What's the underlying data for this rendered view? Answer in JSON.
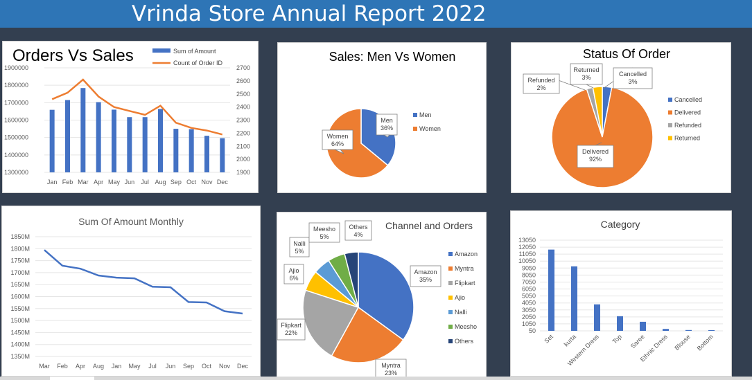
{
  "header": {
    "title": "Vrinda Store Annual Report 2022"
  },
  "chart_data": [
    {
      "id": "orders-vs-sales",
      "type": "bar",
      "title": "Orders Vs Sales",
      "categories": [
        "Jan",
        "Feb",
        "Mar",
        "Apr",
        "May",
        "Jun",
        "Jul",
        "Aug",
        "Sep",
        "Oct",
        "Nov",
        "Dec"
      ],
      "series": [
        {
          "name": "Sum of Amount",
          "type": "bar",
          "axis": "left",
          "color": "#4472c4",
          "values": [
            1659000,
            1715000,
            1784000,
            1703000,
            1660000,
            1617000,
            1617000,
            1664000,
            1550000,
            1548000,
            1510000,
            1496000
          ]
        },
        {
          "name": "Count of Order ID",
          "type": "line",
          "axis": "right",
          "color": "#ed7d31",
          "values": [
            2460,
            2510,
            2610,
            2480,
            2400,
            2370,
            2340,
            2410,
            2280,
            2240,
            2220,
            2190
          ]
        }
      ],
      "ylim_left": [
        1300000,
        1900000
      ],
      "yticks_left": [
        "1900000",
        "1800000",
        "1700000",
        "1600000",
        "1500000",
        "1400000",
        "1300000"
      ],
      "ylim_right": [
        1900,
        2700
      ],
      "yticks_right": [
        "2700",
        "2600",
        "2500",
        "2400",
        "2300",
        "2200",
        "2100",
        "2000",
        "1900"
      ],
      "legend": "top-right"
    },
    {
      "id": "sales-men-women",
      "type": "pie",
      "title": "Sales: Men Vs Women",
      "slices": [
        {
          "name": "Men",
          "value": 36,
          "label": "36%",
          "color": "#4472c4"
        },
        {
          "name": "Women",
          "value": 64,
          "label": "64%",
          "color": "#ed7d31"
        }
      ],
      "legend": "right"
    },
    {
      "id": "status-of-order",
      "type": "pie",
      "title": "Status Of Order",
      "slices": [
        {
          "name": "Cancelled",
          "value": 3,
          "label": "3%",
          "color": "#4472c4"
        },
        {
          "name": "Delivered",
          "value": 92,
          "label": "92%",
          "color": "#ed7d31"
        },
        {
          "name": "Refunded",
          "value": 2,
          "label": "2%",
          "color": "#a5a5a5"
        },
        {
          "name": "Returned",
          "value": 3,
          "label": "3%",
          "color": "#ffc000"
        }
      ],
      "legend": "right"
    },
    {
      "id": "sum-of-amount-monthly",
      "type": "line",
      "title": "Sum Of Amount Monthly",
      "categories": [
        "Mar",
        "Feb",
        "Apr",
        "Aug",
        "Jan",
        "May",
        "Jul",
        "Jun",
        "Sep",
        "Oct",
        "Nov",
        "Dec"
      ],
      "series": [
        {
          "color": "#4472c4",
          "values": [
            1789000,
            1717000,
            1703000,
            1672000,
            1662000,
            1659000,
            1620000,
            1618000,
            1550000,
            1548000,
            1508000,
            1497000
          ]
        }
      ],
      "ylim": [
        1300000,
        1850000
      ],
      "yticks": [
        "1850M",
        "1800M",
        "1750M",
        "1700M",
        "1650M",
        "1600M",
        "1550M",
        "1500M",
        "1450M",
        "1400M",
        "1350M"
      ]
    },
    {
      "id": "channel-and-orders",
      "type": "pie",
      "title": "Channel and Orders",
      "slices": [
        {
          "name": "Amazon",
          "value": 35,
          "label": "35%",
          "color": "#4472c4"
        },
        {
          "name": "Myntra",
          "value": 23,
          "label": "23%",
          "color": "#ed7d31"
        },
        {
          "name": "Flipkart",
          "value": 22,
          "label": "22%",
          "color": "#a5a5a5"
        },
        {
          "name": "Ajio",
          "value": 6,
          "label": "6%",
          "color": "#ffc000"
        },
        {
          "name": "Nalli",
          "value": 5,
          "label": "5%",
          "color": "#5b9bd5"
        },
        {
          "name": "Meesho",
          "value": 5,
          "label": "5%",
          "color": "#70ad47"
        },
        {
          "name": "Others",
          "value": 4,
          "label": "4%",
          "color": "#264478"
        }
      ],
      "legend": "right"
    },
    {
      "id": "category",
      "type": "bar",
      "title": "Category",
      "categories": [
        "Set",
        "kurta",
        "Western Dress",
        "Top",
        "Saree",
        "Ethnic Dress",
        "Blouse",
        "Bottom"
      ],
      "values": [
        11700,
        9300,
        3850,
        2150,
        1350,
        330,
        170,
        160
      ],
      "color": "#4472c4",
      "ylim": [
        50,
        13050
      ],
      "yticks": [
        "13050",
        "12050",
        "11050",
        "10050",
        "9050",
        "8050",
        "7050",
        "6050",
        "5050",
        "4050",
        "3050",
        "2050",
        "1050",
        "50"
      ]
    }
  ]
}
